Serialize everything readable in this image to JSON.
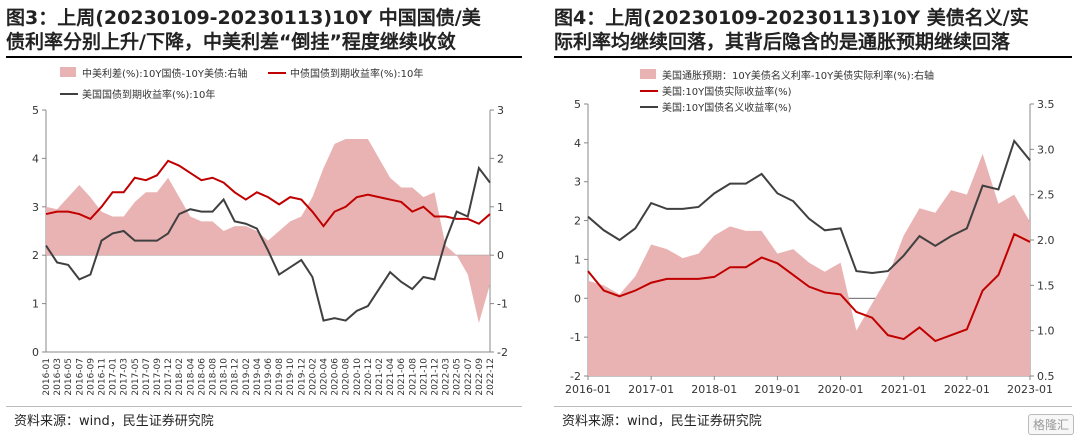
{
  "panels": {
    "left": {
      "title_line1": "图3：上周(20230109-20230113)10Y 中国国债/美",
      "title_line2": "债利率分别上升/下降，中美利差“倒挂”程度继续收敛",
      "source": "资料来源：wind，民生证券研究院"
    },
    "right": {
      "title_line1": "图4：上周(20230109-20230113)10Y 美债名义/实",
      "title_line2": "际利率均继续回落，其背后隐含的是通胀预期继续回落",
      "source": "资料来源：wind，民生证券研究院"
    }
  },
  "watermark": "格隆汇",
  "colors": {
    "area": "#eab3b3",
    "red": "#c00000",
    "dark": "#404040",
    "axis": "#888888"
  },
  "chart_data": [
    {
      "type": "line",
      "legend": [
        "中美利差(%):10Y国债-10Y美债:右轴",
        "中债国债到期收益率(%):10年",
        "美国国债到期收益率(%):10年"
      ],
      "legend_placement": "top",
      "x": [
        "2016-01",
        "2016-03",
        "2016-05",
        "2016-07",
        "2016-09",
        "2016-11",
        "2017-01",
        "2017-03",
        "2017-05",
        "2017-07",
        "2017-09",
        "2017-12",
        "2018-02",
        "2018-04",
        "2018-06",
        "2018-08",
        "2018-10",
        "2018-12",
        "2019-02",
        "2019-04",
        "2019-06",
        "2019-08",
        "2019-10",
        "2019-12",
        "2020-02",
        "2020-04",
        "2020-06",
        "2020-08",
        "2020-10",
        "2020-12",
        "2021-02",
        "2021-04",
        "2021-06",
        "2021-08",
        "2021-10",
        "2021-12",
        "2022-03",
        "2022-05",
        "2022-07",
        "2022-09",
        "2022-12"
      ],
      "y_left": {
        "ylim": [
          0,
          5
        ],
        "ticks": [
          "0",
          "1",
          "2",
          "3",
          "4",
          "5"
        ]
      },
      "y_right": {
        "ylim": [
          -2,
          3
        ],
        "ticks": [
          "-2",
          "-1",
          "0",
          "1",
          "2",
          "3"
        ]
      },
      "series": [
        {
          "name": "中美利差(%):10Y国债-10Y美债:右轴",
          "kind": "area",
          "axis": "right",
          "values": [
            1.0,
            0.95,
            1.2,
            1.45,
            1.2,
            0.9,
            0.8,
            0.8,
            1.1,
            1.3,
            1.3,
            1.6,
            1.2,
            0.8,
            0.7,
            0.7,
            0.5,
            0.6,
            0.6,
            0.5,
            0.3,
            0.5,
            0.7,
            0.8,
            1.2,
            1.8,
            2.3,
            2.4,
            2.4,
            2.4,
            2.0,
            1.6,
            1.4,
            1.4,
            1.2,
            1.3,
            0.2,
            0.0,
            -0.4,
            -1.4,
            -0.6
          ]
        },
        {
          "name": "中债国债到期收益率(%):10年",
          "kind": "line",
          "axis": "left",
          "values": [
            2.85,
            2.9,
            2.9,
            2.85,
            2.75,
            3.0,
            3.3,
            3.3,
            3.6,
            3.55,
            3.65,
            3.95,
            3.85,
            3.7,
            3.55,
            3.6,
            3.5,
            3.3,
            3.15,
            3.3,
            3.2,
            3.05,
            3.2,
            3.15,
            2.9,
            2.6,
            2.9,
            3.0,
            3.2,
            3.25,
            3.2,
            3.15,
            3.1,
            2.9,
            3.0,
            2.8,
            2.8,
            2.75,
            2.75,
            2.65,
            2.85
          ]
        },
        {
          "name": "美国国债到期收益率(%):10年",
          "kind": "line",
          "axis": "left",
          "values": [
            2.2,
            1.85,
            1.8,
            1.5,
            1.6,
            2.3,
            2.45,
            2.5,
            2.3,
            2.3,
            2.3,
            2.45,
            2.85,
            2.95,
            2.9,
            2.9,
            3.15,
            2.7,
            2.65,
            2.55,
            2.1,
            1.6,
            1.75,
            1.9,
            1.55,
            0.65,
            0.7,
            0.65,
            0.85,
            0.95,
            1.3,
            1.65,
            1.45,
            1.3,
            1.55,
            1.5,
            2.3,
            2.9,
            2.8,
            3.8,
            3.5
          ]
        }
      ]
    },
    {
      "type": "line",
      "legend": [
        "美国通胀预期：10Y美债名义利率-10Y美债实际利率(%):右轴",
        "美国:10Y国债实际收益率(%)",
        "美国:10Y国债名义收益率(%)"
      ],
      "legend_placement": "top",
      "x": [
        "2016-01",
        "2016-04",
        "2016-07",
        "2016-10",
        "2017-01",
        "2017-04",
        "2017-07",
        "2017-10",
        "2018-01",
        "2018-04",
        "2018-07",
        "2018-10",
        "2019-01",
        "2019-04",
        "2019-07",
        "2019-10",
        "2020-01",
        "2020-03",
        "2020-06",
        "2020-09",
        "2021-01",
        "2021-04",
        "2021-07",
        "2021-10",
        "2022-01",
        "2022-04",
        "2022-07",
        "2022-10",
        "2023-01"
      ],
      "x_ticks": [
        "2016-01",
        "2017-01",
        "2018-01",
        "2019-01",
        "2020-01",
        "2021-01",
        "2022-01",
        "2023-01"
      ],
      "y_left": {
        "ylim": [
          -2,
          5
        ],
        "ticks": [
          "-2",
          "-1",
          "0",
          "1",
          "2",
          "3",
          "4",
          "5"
        ]
      },
      "y_right": {
        "ylim": [
          0.5,
          3.5
        ],
        "ticks": [
          "0.5",
          "1.0",
          "1.5",
          "2.0",
          "2.5",
          "3.0",
          "3.5"
        ]
      },
      "series": [
        {
          "name": "美国通胀预期：10Y美债名义利率-10Y美债实际利率(%):右轴",
          "kind": "area",
          "axis": "right",
          "values": [
            1.55,
            1.5,
            1.4,
            1.6,
            1.95,
            1.9,
            1.8,
            1.85,
            2.05,
            2.15,
            2.1,
            2.1,
            1.85,
            1.9,
            1.75,
            1.65,
            1.75,
            1.0,
            1.3,
            1.6,
            2.05,
            2.35,
            2.3,
            2.55,
            2.5,
            2.95,
            2.4,
            2.5,
            2.2
          ]
        },
        {
          "name": "美国:10Y国债实际收益率(%)",
          "kind": "line",
          "axis": "left",
          "values": [
            0.7,
            0.2,
            0.05,
            0.2,
            0.4,
            0.5,
            0.5,
            0.5,
            0.55,
            0.8,
            0.8,
            1.05,
            0.9,
            0.6,
            0.3,
            0.15,
            0.1,
            -0.35,
            -0.5,
            -0.95,
            -1.05,
            -0.75,
            -1.1,
            -0.95,
            -0.8,
            0.2,
            0.6,
            1.65,
            1.45
          ]
        },
        {
          "name": "美国:10Y国债名义收益率(%)",
          "kind": "line",
          "axis": "left",
          "values": [
            2.1,
            1.75,
            1.5,
            1.8,
            2.45,
            2.3,
            2.3,
            2.35,
            2.7,
            2.95,
            2.95,
            3.2,
            2.7,
            2.5,
            2.05,
            1.75,
            1.8,
            0.7,
            0.65,
            0.7,
            1.1,
            1.6,
            1.35,
            1.6,
            1.8,
            2.9,
            2.8,
            4.05,
            3.55
          ]
        }
      ]
    }
  ]
}
